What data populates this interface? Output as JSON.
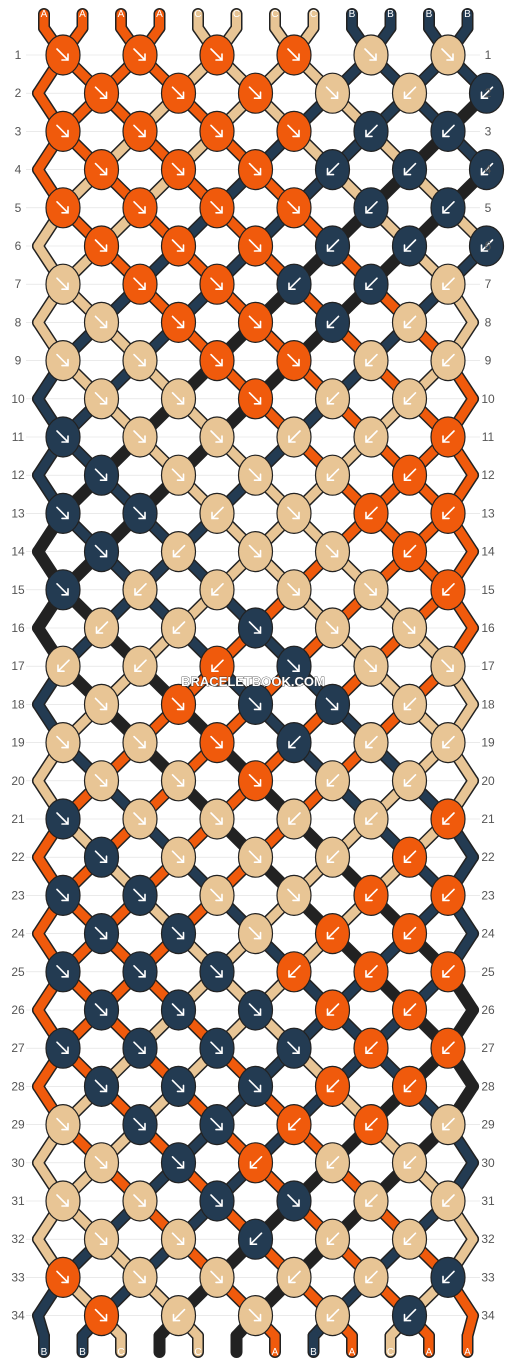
{
  "watermark": "BRACELETBOOK.COM",
  "colors": {
    "A": "#f05a0c",
    "B": "#233b52",
    "C": "#e8c595"
  },
  "string_labels": [
    "A",
    "A",
    "A",
    "A",
    "C",
    "C",
    "C",
    "C",
    "B",
    "B",
    "B",
    "B"
  ],
  "row_labels": [
    "1",
    "2",
    "3",
    "4",
    "5",
    "6",
    "7",
    "8",
    "9",
    "10",
    "11",
    "12",
    "13",
    "14",
    "15",
    "16",
    "17",
    "18",
    "19",
    "20",
    "21",
    "22",
    "23",
    "24",
    "25",
    "26",
    "27",
    "28",
    "29",
    "30",
    "31",
    "32",
    "33",
    "34"
  ],
  "knot_rows": [
    "A>A>A>A>C>C>B<B<",
    "A>A>A>C>C<B<B<",
    "A>A>A>A>B<B<B<",
    "A>A>A>B<B<B<",
    "A>A>A>A>B<B<B<",
    "A>A>A>B<B<B<",
    "C>A>A>B<B<C<",
    "C>A>A>B<C<",
    "C>C>A>A>C<C<",
    "C>C>A>C<C<",
    "B>C>C>C<C<A<",
    "B>C>C>C<A<",
    "B>B>C<C>A<A<",
    "B>C<C>C>A<",
    "B>C<C<C>C>A<",
    "C<C<B>C>C>",
    "C<C<A<B>C>C>",
    "C>A>B>B>C<",
    "C>C>A>B<C<C<",
    "C>C>A>C<C<",
    "B>C>C>C<C<A<",
    "B>C>C>C<A<",
    "B>B>C>C>A<A<",
    "B>B>C>A<A<",
    "B>B>B>A<A<A<",
    "B>B>B>A<A<",
    "B>B>B>B>A<A<A<",
    "B>B>B>A<A<",
    "C>B>B>A<A<C<",
    "C>B>A<C<C<",
    "C>C>B>B>C<C<",
    "C>C>B<C<C<",
    "A>C>C>C<C<B<",
    "A>C<C>C<B<"
  ]
}
